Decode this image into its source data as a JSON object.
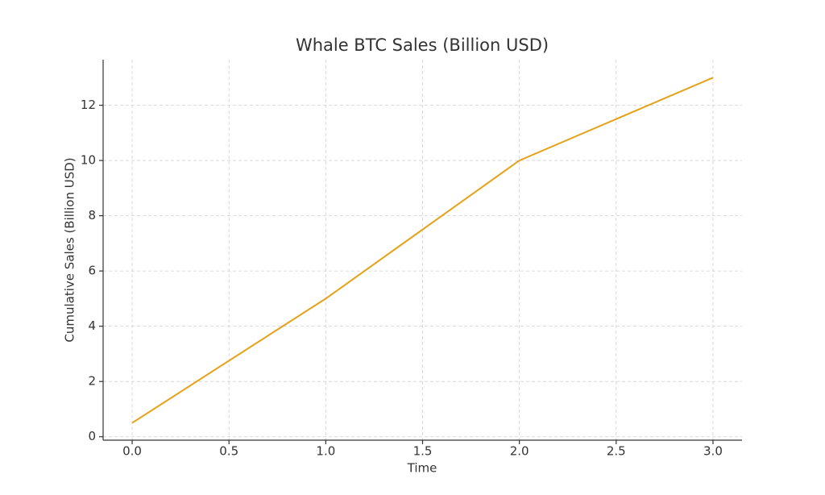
{
  "chart_data": {
    "type": "line",
    "title": "Whale BTC Sales (Billion USD)",
    "x_label": "Time",
    "y_label": "Cumulative Sales (Billion USD)",
    "x": [
      0,
      1,
      2,
      3
    ],
    "values": [
      0.5,
      5,
      10,
      13
    ],
    "color": "#e6a117",
    "xlim": [
      -0.15,
      3.15
    ],
    "ylim": [
      -0.125,
      13.65
    ],
    "xticks": [
      {
        "value": 0,
        "label": "0.0"
      },
      0.5,
      {
        "value": 1,
        "label": "1.0"
      },
      1.5,
      {
        "value": 2,
        "label": "2.0"
      },
      2.5,
      {
        "value": 3,
        "label": "3.0"
      }
    ],
    "yticks": [
      0,
      2,
      4,
      6,
      8,
      10,
      12
    ],
    "grid": true
  }
}
